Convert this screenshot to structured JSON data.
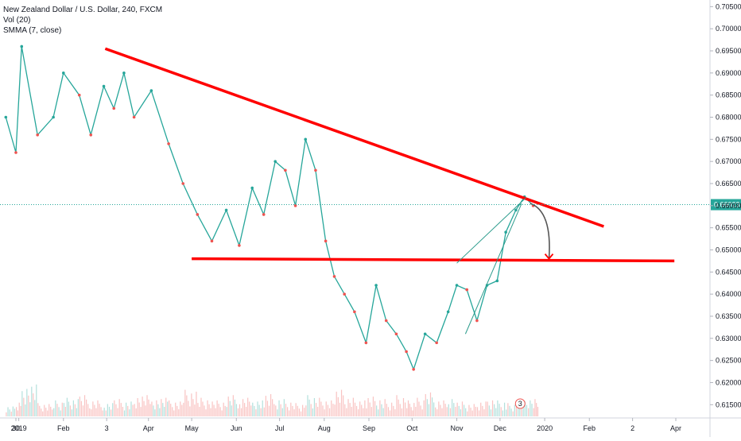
{
  "legend": {
    "symbol_line": "New Zealand Dollar / U.S. Dollar, 240, FXCM",
    "volume_line": "Vol (20)",
    "indicator_line": "SMMA (7, close)"
  },
  "current_price": "0.66023",
  "event_badge": "3",
  "colors": {
    "up": "#26a69a",
    "down": "#ef5350",
    "trendline": "#ff0000",
    "current_price_line": "#26a69a",
    "arrow": "#555555",
    "thin_trendline": "#2b9b8c"
  },
  "chart_data": {
    "type": "line",
    "title": "",
    "series_name": "New Zealand Dollar / U.S. Dollar, 240, FXCM",
    "ylim": [
      0.612,
      0.7065
    ],
    "y_ticks": [
      "0.61500",
      "0.62000",
      "0.62500",
      "0.63000",
      "0.63500",
      "0.64000",
      "0.64500",
      "0.65000",
      "0.65500",
      "0.66000",
      "0.66500",
      "0.67000",
      "0.67500",
      "0.68000",
      "0.68500",
      "0.69000",
      "0.69500",
      "0.70000",
      "0.70500"
    ],
    "x_ticks": [
      "30",
      "2019",
      "Feb",
      "3",
      "Apr",
      "May",
      "Jun",
      "Jul",
      "Aug",
      "Sep",
      "Oct",
      "Nov",
      "Dec",
      "2020",
      "Feb",
      "2",
      "Apr"
    ],
    "x_tick_dates": [
      "2018-12-30",
      "2019-01-01",
      "2019-02-01",
      "2019-03-03",
      "2019-04-01",
      "2019-05-01",
      "2019-06-01",
      "2019-07-01",
      "2019-08-01",
      "2019-09-01",
      "2019-10-01",
      "2019-11-01",
      "2019-12-01",
      "2020-01-01",
      "2020-02-01",
      "2020-03-02",
      "2020-04-01"
    ],
    "x": [
      "2018-12-23",
      "2018-12-30",
      "2019-01-03",
      "2019-01-14",
      "2019-01-25",
      "2019-02-01",
      "2019-02-12",
      "2019-02-20",
      "2019-03-01",
      "2019-03-08",
      "2019-03-15",
      "2019-03-22",
      "2019-04-03",
      "2019-04-15",
      "2019-04-25",
      "2019-05-05",
      "2019-05-15",
      "2019-05-25",
      "2019-06-03",
      "2019-06-12",
      "2019-06-20",
      "2019-06-28",
      "2019-07-05",
      "2019-07-12",
      "2019-07-19",
      "2019-07-26",
      "2019-08-02",
      "2019-08-08",
      "2019-08-15",
      "2019-08-22",
      "2019-08-30",
      "2019-09-06",
      "2019-09-13",
      "2019-09-20",
      "2019-09-27",
      "2019-10-02",
      "2019-10-10",
      "2019-10-18",
      "2019-10-26",
      "2019-11-01",
      "2019-11-08",
      "2019-11-15",
      "2019-11-22",
      "2019-11-29",
      "2019-12-05",
      "2019-12-12",
      "2019-12-18",
      "2019-12-24"
    ],
    "values": [
      0.68,
      0.672,
      0.696,
      0.676,
      0.68,
      0.69,
      0.685,
      0.676,
      0.687,
      0.682,
      0.69,
      0.68,
      0.686,
      0.674,
      0.665,
      0.658,
      0.652,
      0.659,
      0.651,
      0.664,
      0.658,
      0.67,
      0.668,
      0.66,
      0.675,
      0.668,
      0.652,
      0.644,
      0.64,
      0.636,
      0.629,
      0.642,
      0.634,
      0.631,
      0.627,
      0.623,
      0.631,
      0.629,
      0.636,
      0.642,
      0.641,
      0.634,
      0.642,
      0.643,
      0.654,
      0.659,
      0.662,
      0.66
    ],
    "volume": [
      0.2,
      0.3,
      0.6,
      0.25,
      0.3,
      0.35,
      0.4,
      0.3,
      0.25,
      0.35,
      0.3,
      0.4,
      0.35,
      0.3,
      0.5,
      0.35,
      0.3,
      0.4,
      0.35,
      0.3,
      0.45,
      0.35,
      0.3,
      0.25,
      0.4,
      0.35,
      0.3,
      0.5,
      0.35,
      0.3,
      0.4,
      0.35,
      0.3,
      0.4,
      0.3,
      0.35,
      0.45,
      0.3,
      0.35,
      0.3,
      0.25,
      0.3,
      0.35,
      0.3,
      0.25,
      0.3,
      0.3,
      0.35
    ],
    "annotations": [
      {
        "type": "trendline",
        "from": [
          "2019-03-02",
          0.6955
        ],
        "to": [
          "2020-02-11",
          0.6553
        ]
      },
      {
        "type": "horizontal",
        "from": [
          "2019-05-01",
          0.648
        ],
        "to": [
          "2020-03-31",
          0.6475
        ]
      },
      {
        "type": "trendline",
        "from": [
          "2019-11-07",
          0.631
        ],
        "to": [
          "2019-12-16",
          0.6605
        ]
      },
      {
        "type": "trendline",
        "from": [
          "2019-11-01",
          0.647
        ],
        "to": [
          "2019-12-19",
          0.6618
        ]
      },
      {
        "type": "arrow",
        "from": [
          "2019-12-22",
          0.6605
        ],
        "to": [
          "2020-01-04",
          0.648
        ]
      }
    ]
  }
}
